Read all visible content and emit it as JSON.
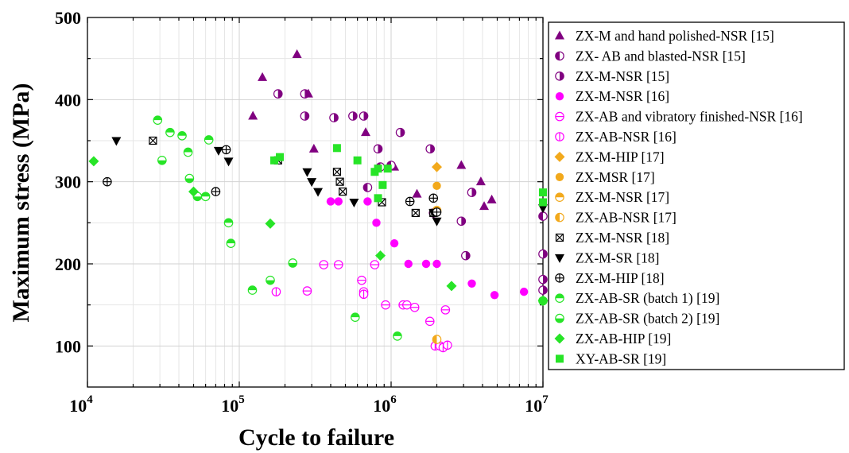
{
  "chart_data": {
    "type": "scatter",
    "title": "",
    "xlabel": "Cycle to failure",
    "ylabel": "Maximum stress (MPa)",
    "x_scale": "log",
    "xlim": [
      10000,
      10000000
    ],
    "ylim": [
      50,
      500
    ],
    "x_ticks": [
      {
        "value": 10000,
        "base": "10",
        "exp": "4"
      },
      {
        "value": 100000,
        "base": "10",
        "exp": "5"
      },
      {
        "value": 1000000,
        "base": "10",
        "exp": "6"
      },
      {
        "value": 10000000,
        "base": "10",
        "exp": "7"
      }
    ],
    "y_ticks": [
      100,
      200,
      300,
      400,
      500
    ],
    "grid": true,
    "legend_position": "right",
    "series": [
      {
        "name": "ZX-M and hand polished-NSR [15]",
        "marker": "triangle",
        "color": "#800080",
        "points": [
          [
            123000,
            380
          ],
          [
            142000,
            427
          ],
          [
            240000,
            455
          ],
          [
            285000,
            407
          ],
          [
            310000,
            340
          ],
          [
            680000,
            360
          ],
          [
            1050000,
            318
          ],
          [
            1480000,
            285
          ],
          [
            2900000,
            320
          ],
          [
            3900000,
            300
          ],
          [
            4100000,
            270
          ],
          [
            4600000,
            278
          ]
        ]
      },
      {
        "name": "ZX- AB and blasted-NSR [15]",
        "marker": "circle-half-left",
        "color": "#800080",
        "points": [
          [
            700000,
            293
          ],
          [
            850000,
            318
          ],
          [
            1000000,
            320
          ],
          [
            1900000,
            262
          ],
          [
            10000000,
            258
          ]
        ]
      },
      {
        "name": "ZX-M-NSR [15]",
        "marker": "circle-half-right",
        "color": "#800080",
        "points": [
          [
            180000,
            407
          ],
          [
            270000,
            407
          ],
          [
            270000,
            380
          ],
          [
            420000,
            378
          ],
          [
            560000,
            380
          ],
          [
            660000,
            380
          ],
          [
            820000,
            340
          ],
          [
            1150000,
            360
          ],
          [
            1810000,
            340
          ],
          [
            2900000,
            252
          ],
          [
            3100000,
            210
          ],
          [
            3400000,
            287
          ],
          [
            10000000,
            212
          ],
          [
            10000000,
            181
          ],
          [
            10000000,
            168
          ]
        ]
      },
      {
        "name": "ZX-M-NSR [16]",
        "marker": "circle",
        "color": "#ff00ff",
        "points": [
          [
            400000,
            276
          ],
          [
            450000,
            276
          ],
          [
            700000,
            276
          ],
          [
            800000,
            250
          ],
          [
            1050000,
            225
          ],
          [
            1300000,
            200
          ],
          [
            1700000,
            200
          ],
          [
            2000000,
            200
          ],
          [
            3400000,
            176
          ],
          [
            4800000,
            162
          ],
          [
            7500000,
            166
          ]
        ]
      },
      {
        "name": "ZX-AB and vibratory finished-NSR [16]",
        "marker": "circle-open-bar",
        "color": "#ff00ff",
        "points": [
          [
            280000,
            167
          ],
          [
            360000,
            199
          ],
          [
            450000,
            199
          ],
          [
            640000,
            180
          ],
          [
            660000,
            166
          ],
          [
            780000,
            199
          ],
          [
            920000,
            150
          ],
          [
            1200000,
            150
          ],
          [
            1270000,
            150
          ],
          [
            1430000,
            147
          ],
          [
            2280000,
            144
          ],
          [
            1800000,
            130
          ]
        ]
      },
      {
        "name": "ZX-AB-NSR [16]",
        "marker": "circle-open-vbar",
        "color": "#ff00ff",
        "points": [
          [
            175000,
            166
          ],
          [
            660000,
            163
          ],
          [
            1950000,
            100
          ],
          [
            2100000,
            100
          ],
          [
            2200000,
            98
          ],
          [
            2350000,
            101
          ]
        ]
      },
      {
        "name": "ZX-M-HIP [17]",
        "marker": "diamond",
        "color": "#f2a91c",
        "points": [
          [
            2000000,
            318
          ]
        ]
      },
      {
        "name": "ZX-MSR [17]",
        "marker": "circle",
        "color": "#f2a91c",
        "points": [
          [
            2000000,
            295
          ]
        ]
      },
      {
        "name": "ZX-M-NSR [17]",
        "marker": "circle-half-top",
        "color": "#f2a91c",
        "points": [
          [
            2000000,
            265
          ]
        ]
      },
      {
        "name": "ZX-AB-NSR [17]",
        "marker": "circle-half-left",
        "color": "#f2a91c",
        "points": [
          [
            2000000,
            108
          ]
        ]
      },
      {
        "name": "ZX-M-NSR [18]",
        "marker": "square-x",
        "color": "#000000",
        "points": [
          [
            27000,
            350
          ],
          [
            180000,
            326
          ],
          [
            440000,
            312
          ],
          [
            460000,
            300
          ],
          [
            480000,
            288
          ],
          [
            870000,
            275
          ],
          [
            1450000,
            262
          ],
          [
            1900000,
            262
          ]
        ]
      },
      {
        "name": "ZX-M-SR [18]",
        "marker": "triangle-down",
        "color": "#000000",
        "points": [
          [
            15500,
            350
          ],
          [
            73000,
            338
          ],
          [
            85000,
            325
          ],
          [
            280000,
            312
          ],
          [
            300000,
            300
          ],
          [
            330000,
            288
          ],
          [
            570000,
            275
          ],
          [
            1900000,
            262
          ],
          [
            2000000,
            252
          ],
          [
            10000000,
            268
          ]
        ]
      },
      {
        "name": "ZX-M-HIP [18]",
        "marker": "circle-plus",
        "color": "#000000",
        "points": [
          [
            13500,
            300
          ],
          [
            70000,
            288
          ],
          [
            82000,
            339
          ],
          [
            1330000,
            276
          ],
          [
            1900000,
            280
          ],
          [
            2000000,
            263
          ]
        ]
      },
      {
        "name": "ZX-AB-SR (batch 1) [19]",
        "marker": "circle-half-top",
        "color": "#27e427",
        "points": [
          [
            29000,
            375
          ],
          [
            35000,
            360
          ],
          [
            42000,
            356
          ],
          [
            46000,
            336
          ],
          [
            60000,
            282
          ],
          [
            63000,
            351
          ],
          [
            85000,
            250
          ],
          [
            88000,
            225
          ],
          [
            122000,
            168
          ],
          [
            580000,
            135
          ],
          [
            1100000,
            112
          ],
          [
            10000000,
            155
          ]
        ]
      },
      {
        "name": "ZX-AB-SR (batch 2) [19]",
        "marker": "circle-half-bottom",
        "color": "#27e427",
        "points": [
          [
            31000,
            326
          ],
          [
            47000,
            304
          ],
          [
            53000,
            282
          ],
          [
            160000,
            180
          ],
          [
            225000,
            201
          ]
        ]
      },
      {
        "name": "ZX-AB-HIP [19]",
        "marker": "diamond",
        "color": "#27e427",
        "points": [
          [
            11000,
            325
          ],
          [
            50000,
            288
          ],
          [
            160000,
            249
          ],
          [
            850000,
            210
          ],
          [
            2500000,
            173
          ],
          [
            10000000,
            155
          ]
        ]
      },
      {
        "name": "XY-AB-SR [19]",
        "marker": "square",
        "color": "#27e427",
        "points": [
          [
            170000,
            326
          ],
          [
            185000,
            330
          ],
          [
            440000,
            341
          ],
          [
            600000,
            326
          ],
          [
            780000,
            312
          ],
          [
            820000,
            316
          ],
          [
            820000,
            280
          ],
          [
            880000,
            296
          ],
          [
            950000,
            316
          ],
          [
            10000000,
            287
          ],
          [
            10000000,
            275
          ]
        ]
      }
    ]
  }
}
